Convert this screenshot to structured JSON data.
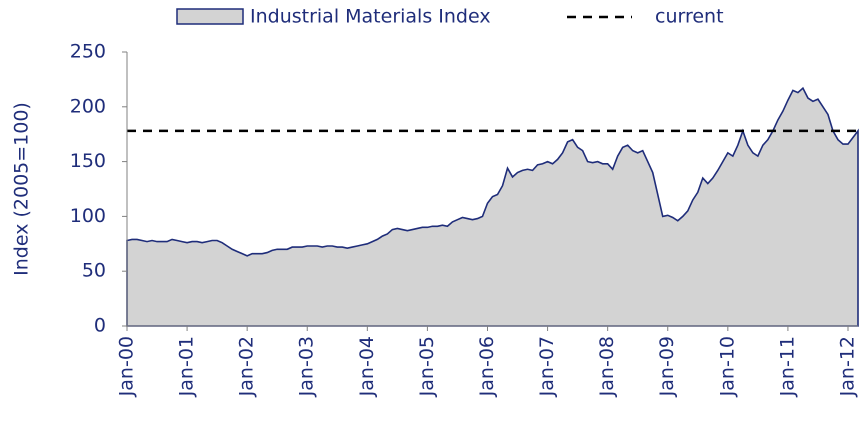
{
  "chart_data": {
    "type": "area",
    "y_label": "Index (2005=100)",
    "categories": [
      "Jan-00",
      null,
      null,
      null,
      null,
      null,
      null,
      null,
      null,
      null,
      null,
      null,
      "Jan-01",
      null,
      null,
      null,
      null,
      null,
      null,
      null,
      null,
      null,
      null,
      null,
      "Jan-02",
      null,
      null,
      null,
      null,
      null,
      null,
      null,
      null,
      null,
      null,
      null,
      "Jan-03",
      null,
      null,
      null,
      null,
      null,
      null,
      null,
      null,
      null,
      null,
      null,
      "Jan-04",
      null,
      null,
      null,
      null,
      null,
      null,
      null,
      null,
      null,
      null,
      null,
      "Jan-05",
      null,
      null,
      null,
      null,
      null,
      null,
      null,
      null,
      null,
      null,
      null,
      "Jan-06",
      null,
      null,
      null,
      null,
      null,
      null,
      null,
      null,
      null,
      null,
      null,
      "Jan-07",
      null,
      null,
      null,
      null,
      null,
      null,
      null,
      null,
      null,
      null,
      null,
      "Jan-08",
      null,
      null,
      null,
      null,
      null,
      null,
      null,
      null,
      null,
      null,
      null,
      "Jan-09",
      null,
      null,
      null,
      null,
      null,
      null,
      null,
      null,
      null,
      null,
      null,
      "Jan-10",
      null,
      null,
      null,
      null,
      null,
      null,
      null,
      null,
      null,
      null,
      null,
      "Jan-11",
      null,
      null,
      null,
      null,
      null,
      null,
      null,
      null,
      null,
      null,
      null,
      "Jan-12",
      null,
      null
    ],
    "series": [
      {
        "name": "Industrial Materials Index",
        "color": "#1f2d7a",
        "fill": "#d3d3d3",
        "values": [
          78,
          79,
          79,
          78,
          77,
          78,
          77,
          77,
          77,
          79,
          78,
          77,
          76,
          77,
          77,
          76,
          77,
          78,
          78,
          76,
          73,
          70,
          68,
          66,
          64,
          66,
          66,
          66,
          67,
          69,
          70,
          70,
          70,
          72,
          72,
          72,
          73,
          73,
          73,
          72,
          73,
          73,
          72,
          72,
          71,
          72,
          73,
          74,
          75,
          77,
          79,
          82,
          84,
          88,
          89,
          88,
          87,
          88,
          89,
          90,
          90,
          91,
          91,
          92,
          91,
          95,
          97,
          99,
          98,
          97,
          98,
          100,
          112,
          118,
          120,
          128,
          144,
          136,
          140,
          142,
          143,
          142,
          147,
          148,
          150,
          148,
          152,
          158,
          168,
          170,
          163,
          160,
          150,
          149,
          150,
          148,
          148,
          143,
          155,
          163,
          165,
          160,
          158,
          160,
          150,
          140,
          120,
          100,
          101,
          99,
          96,
          100,
          105,
          115,
          122,
          135,
          130,
          135,
          142,
          150,
          158,
          155,
          165,
          178,
          165,
          158,
          155,
          165,
          170,
          178,
          188,
          196,
          206,
          215,
          213,
          217,
          208,
          205,
          207,
          200,
          193,
          178,
          170,
          166,
          166,
          172,
          178
        ]
      }
    ],
    "current": {
      "name": "current",
      "value": 178,
      "color": "#000000"
    },
    "ylim": [
      0,
      250
    ],
    "yticks": [
      0,
      50,
      100,
      150,
      200,
      250
    ],
    "grid": false,
    "legend": "top"
  }
}
